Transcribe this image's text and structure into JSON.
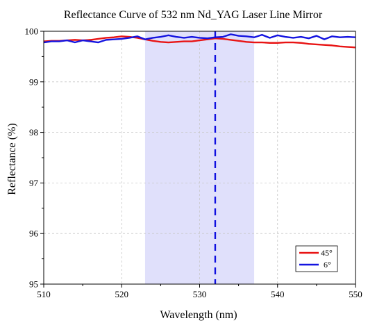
{
  "chart_data": {
    "type": "line",
    "title": "Reflectance Curve of 532 nm Nd_YAG Laser Line Mirror",
    "xlabel": "Wavelength (nm)",
    "ylabel": "Reflectance (%)",
    "xlim": [
      510,
      550
    ],
    "ylim": [
      95,
      100
    ],
    "xticks": [
      510,
      520,
      530,
      540,
      550
    ],
    "yticks": [
      95,
      96,
      97,
      98,
      99,
      100
    ],
    "grid": true,
    "highlight_band": {
      "x": [
        523,
        537
      ],
      "color": "#e0e0fb"
    },
    "reference_line": {
      "x": 532,
      "color": "#1010e0",
      "style": "dashed"
    },
    "legend_position": "bottom-right",
    "series": [
      {
        "name": "45°",
        "color": "#e81414",
        "x": [
          510,
          511,
          512,
          513,
          514,
          515,
          516,
          517,
          518,
          519,
          520,
          521,
          522,
          523,
          524,
          525,
          526,
          527,
          528,
          529,
          530,
          531,
          532,
          533,
          534,
          535,
          536,
          537,
          538,
          539,
          540,
          541,
          542,
          543,
          544,
          545,
          546,
          547,
          548,
          549,
          550
        ],
        "y": [
          99.8,
          99.81,
          99.81,
          99.82,
          99.83,
          99.82,
          99.83,
          99.85,
          99.87,
          99.88,
          99.9,
          99.89,
          99.87,
          99.84,
          99.81,
          99.79,
          99.78,
          99.79,
          99.8,
          99.8,
          99.82,
          99.84,
          99.86,
          99.85,
          99.83,
          99.81,
          99.79,
          99.78,
          99.78,
          99.77,
          99.77,
          99.78,
          99.78,
          99.77,
          99.75,
          99.74,
          99.73,
          99.72,
          99.7,
          99.69,
          99.68
        ]
      },
      {
        "name": "6°",
        "color": "#1414e0",
        "x": [
          510,
          511,
          512,
          513,
          514,
          515,
          516,
          517,
          518,
          519,
          520,
          521,
          522,
          523,
          524,
          525,
          526,
          527,
          528,
          529,
          530,
          531,
          532,
          533,
          534,
          535,
          536,
          537,
          538,
          539,
          540,
          541,
          542,
          543,
          544,
          545,
          546,
          547,
          548,
          549,
          550
        ],
        "y": [
          99.78,
          99.8,
          99.8,
          99.82,
          99.78,
          99.82,
          99.8,
          99.78,
          99.83,
          99.84,
          99.85,
          99.87,
          99.9,
          99.84,
          99.87,
          99.89,
          99.92,
          99.89,
          99.87,
          99.89,
          99.87,
          99.86,
          99.88,
          99.89,
          99.94,
          99.91,
          99.9,
          99.88,
          99.93,
          99.87,
          99.92,
          99.89,
          99.87,
          99.89,
          99.86,
          99.91,
          99.84,
          99.9,
          99.88,
          99.89,
          99.88
        ]
      }
    ]
  }
}
